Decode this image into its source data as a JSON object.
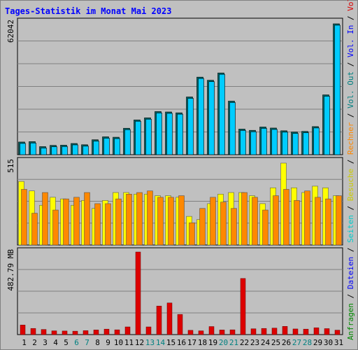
{
  "title": "Tages-Statistik im Monat Mai 2023",
  "colors": {
    "anfragen": "#00ccff",
    "anfragen_edge": "#009999",
    "dateien": "#00cccc",
    "seiten": "#0066ff",
    "besuche": "#ffff00",
    "rechner": "#ff8800",
    "vol_in": "#0000ff",
    "vol_out": "#008080",
    "volumen": "#dd0000",
    "plot_bg": "#c0c0c0",
    "grid": "#808080"
  },
  "right_legend": [
    {
      "text": "Anfragen",
      "color": "#008800"
    },
    {
      "text": " / ",
      "color": "#000000"
    },
    {
      "text": "Dateien",
      "color": "#0000ff"
    },
    {
      "text": " / ",
      "color": "#000000"
    },
    {
      "text": "Seiten",
      "color": "#00cccc"
    },
    {
      "text": " / ",
      "color": "#000000"
    },
    {
      "text": "Besuche",
      "color": "#cccc00"
    },
    {
      "text": " / ",
      "color": "#000000"
    },
    {
      "text": "Rechner",
      "color": "#ff8800"
    },
    {
      "text": " / ",
      "color": "#000000"
    },
    {
      "text": "Vol. Out",
      "color": "#008080"
    },
    {
      "text": " / ",
      "color": "#000000"
    },
    {
      "text": "Vol. In",
      "color": "#0000ff"
    },
    {
      "text": " / ",
      "color": "#000000"
    },
    {
      "text": "Volumen",
      "color": "#dd0000"
    }
  ],
  "chart_data": {
    "type": "bar",
    "x": [
      "1",
      "2",
      "3",
      "4",
      "5",
      "6",
      "7",
      "8",
      "9",
      "10",
      "11",
      "12",
      "13",
      "14",
      "15",
      "16",
      "17",
      "18",
      "19",
      "20",
      "21",
      "22",
      "23",
      "24",
      "25",
      "26",
      "27",
      "28",
      "29",
      "30",
      "31"
    ],
    "weekend_days": [
      "6",
      "7",
      "13",
      "14",
      "20",
      "21",
      "27",
      "28"
    ],
    "weekday_label_color": "#000000",
    "weekend_label_color": "#008080",
    "panels": [
      {
        "max_label": "62042",
        "ymax": 62042,
        "series": [
          {
            "name": "Anfragen",
            "values": [
              5400,
              5600,
              3200,
              3800,
              3900,
              4700,
              4100,
              6500,
              7900,
              7700,
              12000,
              16000,
              17000,
              20000,
              19800,
              19400,
              27000,
              36500,
              35000,
              38500,
              25000,
              11600,
              11000,
              12600,
              12100,
              10800,
              10200,
              10500,
              12800,
              28000,
              62042
            ]
          }
        ]
      },
      {
        "max_label": "515",
        "ymax": 515,
        "series": [
          {
            "name": "Besuche",
            "values": [
              400,
              340,
              250,
              300,
              290,
              250,
              280,
              230,
              280,
              330,
              330,
              320,
              320,
              310,
              310,
              300,
              180,
              160,
              260,
              320,
              330,
              330,
              310,
              260,
              360,
              515,
              360,
              330,
              370,
              360,
              310
            ]
          },
          {
            "name": "Rechner",
            "values": [
              350,
              200,
              330,
              220,
              290,
              300,
              330,
              260,
              260,
              290,
              320,
              330,
              340,
              300,
              300,
              310,
              140,
              230,
              300,
              270,
              230,
              330,
              300,
              220,
              310,
              350,
              280,
              340,
              300,
              290,
              310
            ]
          }
        ]
      },
      {
        "max_label": "482.79 MB",
        "ymax": 482.79,
        "series": [
          {
            "name": "Volumen",
            "values": [
              56,
              36,
              30,
              22,
              21,
              20,
              23,
              27,
              32,
              28,
              45,
              482.79,
              45,
              167,
              185,
              118,
              25,
              22,
              47,
              27,
              28,
              328,
              34,
              36,
              38,
              48,
              33,
              32,
              40,
              35,
              26
            ]
          }
        ]
      }
    ]
  }
}
